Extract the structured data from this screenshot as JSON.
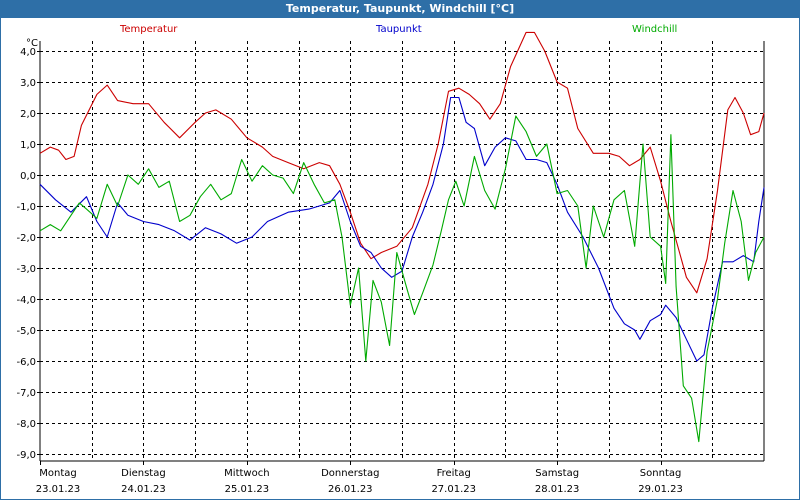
{
  "window": {
    "title": "Temperatur, Taupunkt, Windchill [°C]"
  },
  "unit": "°C",
  "chart_data": {
    "type": "line",
    "title": "Temperatur, Taupunkt, Windchill [°C]",
    "xlabel": "",
    "ylabel": "°C",
    "ylim": [
      -9.0,
      4.0
    ],
    "yticks": [
      "4,0",
      "3,0",
      "2,0",
      "1,0",
      "0,0",
      "-1,0",
      "-2,0",
      "-3,0",
      "-4,0",
      "-5,0",
      "-6,0",
      "-7,0",
      "-8,0",
      "-9,0"
    ],
    "xlim": [
      0,
      7
    ],
    "x_unit": "days from Montag 23.01.23",
    "days": [
      {
        "weekday": "Montag",
        "date": "23.01.23"
      },
      {
        "weekday": "Dienstag",
        "date": "24.01.23"
      },
      {
        "weekday": "Mittwoch",
        "date": "25.01.23"
      },
      {
        "weekday": "Donnerstag",
        "date": "26.01.23"
      },
      {
        "weekday": "Freitag",
        "date": "27.01.23"
      },
      {
        "weekday": "Samstag",
        "date": "28.01.23"
      },
      {
        "weekday": "Sonntag",
        "date": "29.01.23"
      }
    ],
    "grid": true,
    "legend_position": "top",
    "series": [
      {
        "name": "Temperatur",
        "color": "#cc0000",
        "points": [
          [
            0.0,
            0.7
          ],
          [
            0.1,
            0.9
          ],
          [
            0.18,
            0.8
          ],
          [
            0.25,
            0.5
          ],
          [
            0.33,
            0.6
          ],
          [
            0.4,
            1.6
          ],
          [
            0.55,
            2.6
          ],
          [
            0.65,
            2.9
          ],
          [
            0.75,
            2.4
          ],
          [
            0.9,
            2.3
          ],
          [
            1.05,
            2.3
          ],
          [
            1.2,
            1.7
          ],
          [
            1.35,
            1.2
          ],
          [
            1.5,
            1.7
          ],
          [
            1.6,
            2.0
          ],
          [
            1.7,
            2.1
          ],
          [
            1.85,
            1.8
          ],
          [
            2.0,
            1.2
          ],
          [
            2.15,
            0.9
          ],
          [
            2.25,
            0.6
          ],
          [
            2.4,
            0.4
          ],
          [
            2.55,
            0.2
          ],
          [
            2.7,
            0.4
          ],
          [
            2.8,
            0.3
          ],
          [
            2.9,
            -0.3
          ],
          [
            3.0,
            -1.2
          ],
          [
            3.1,
            -2.2
          ],
          [
            3.2,
            -2.7
          ],
          [
            3.3,
            -2.5
          ],
          [
            3.45,
            -2.3
          ],
          [
            3.6,
            -1.7
          ],
          [
            3.75,
            -0.3
          ],
          [
            3.85,
            1.0
          ],
          [
            3.95,
            2.7
          ],
          [
            4.05,
            2.8
          ],
          [
            4.15,
            2.6
          ],
          [
            4.25,
            2.3
          ],
          [
            4.35,
            1.8
          ],
          [
            4.45,
            2.3
          ],
          [
            4.55,
            3.5
          ],
          [
            4.7,
            4.6
          ],
          [
            4.78,
            4.6
          ],
          [
            4.88,
            4.0
          ],
          [
            5.0,
            3.0
          ],
          [
            5.1,
            2.8
          ],
          [
            5.2,
            1.5
          ],
          [
            5.35,
            0.7
          ],
          [
            5.5,
            0.7
          ],
          [
            5.6,
            0.6
          ],
          [
            5.7,
            0.3
          ],
          [
            5.8,
            0.5
          ],
          [
            5.9,
            0.9
          ],
          [
            6.0,
            -0.2
          ],
          [
            6.1,
            -1.5
          ],
          [
            6.25,
            -3.3
          ],
          [
            6.35,
            -3.8
          ],
          [
            6.45,
            -2.7
          ],
          [
            6.55,
            -0.5
          ],
          [
            6.65,
            2.1
          ],
          [
            6.72,
            2.5
          ],
          [
            6.8,
            2.0
          ],
          [
            6.87,
            1.3
          ],
          [
            6.95,
            1.4
          ],
          [
            7.0,
            2.0
          ]
        ]
      },
      {
        "name": "Taupunkt",
        "color": "#0000cc",
        "points": [
          [
            0.0,
            -0.3
          ],
          [
            0.15,
            -0.8
          ],
          [
            0.3,
            -1.2
          ],
          [
            0.45,
            -0.7
          ],
          [
            0.55,
            -1.5
          ],
          [
            0.65,
            -2.0
          ],
          [
            0.75,
            -0.9
          ],
          [
            0.85,
            -1.3
          ],
          [
            1.0,
            -1.5
          ],
          [
            1.15,
            -1.6
          ],
          [
            1.3,
            -1.8
          ],
          [
            1.45,
            -2.1
          ],
          [
            1.6,
            -1.7
          ],
          [
            1.75,
            -1.9
          ],
          [
            1.9,
            -2.2
          ],
          [
            2.05,
            -2.0
          ],
          [
            2.2,
            -1.5
          ],
          [
            2.4,
            -1.2
          ],
          [
            2.6,
            -1.1
          ],
          [
            2.8,
            -0.9
          ],
          [
            2.9,
            -0.5
          ],
          [
            3.0,
            -1.5
          ],
          [
            3.1,
            -2.3
          ],
          [
            3.2,
            -2.5
          ],
          [
            3.3,
            -3.0
          ],
          [
            3.4,
            -3.3
          ],
          [
            3.5,
            -3.1
          ],
          [
            3.6,
            -2.0
          ],
          [
            3.7,
            -1.2
          ],
          [
            3.8,
            -0.3
          ],
          [
            3.9,
            1.0
          ],
          [
            3.97,
            2.5
          ],
          [
            4.05,
            2.5
          ],
          [
            4.12,
            1.7
          ],
          [
            4.2,
            1.5
          ],
          [
            4.3,
            0.3
          ],
          [
            4.4,
            0.9
          ],
          [
            4.5,
            1.2
          ],
          [
            4.6,
            1.1
          ],
          [
            4.7,
            0.5
          ],
          [
            4.8,
            0.5
          ],
          [
            4.9,
            0.4
          ],
          [
            5.0,
            -0.3
          ],
          [
            5.1,
            -1.2
          ],
          [
            5.25,
            -2.0
          ],
          [
            5.4,
            -3.0
          ],
          [
            5.55,
            -4.3
          ],
          [
            5.65,
            -4.8
          ],
          [
            5.75,
            -5.0
          ],
          [
            5.8,
            -5.3
          ],
          [
            5.9,
            -4.7
          ],
          [
            6.0,
            -4.5
          ],
          [
            6.05,
            -4.2
          ],
          [
            6.15,
            -4.6
          ],
          [
            6.25,
            -5.3
          ],
          [
            6.35,
            -6.0
          ],
          [
            6.42,
            -5.8
          ],
          [
            6.5,
            -4.3
          ],
          [
            6.6,
            -2.8
          ],
          [
            6.7,
            -2.8
          ],
          [
            6.8,
            -2.6
          ],
          [
            6.9,
            -2.8
          ],
          [
            6.95,
            -1.5
          ],
          [
            7.0,
            -0.4
          ]
        ]
      },
      {
        "name": "Windchill",
        "color": "#00aa00",
        "points": [
          [
            0.0,
            -1.8
          ],
          [
            0.1,
            -1.6
          ],
          [
            0.2,
            -1.8
          ],
          [
            0.3,
            -1.3
          ],
          [
            0.38,
            -0.9
          ],
          [
            0.45,
            -1.1
          ],
          [
            0.55,
            -1.4
          ],
          [
            0.65,
            -0.3
          ],
          [
            0.75,
            -1.0
          ],
          [
            0.85,
            0.0
          ],
          [
            0.95,
            -0.3
          ],
          [
            1.05,
            0.2
          ],
          [
            1.15,
            -0.4
          ],
          [
            1.25,
            -0.2
          ],
          [
            1.35,
            -1.5
          ],
          [
            1.45,
            -1.3
          ],
          [
            1.55,
            -0.7
          ],
          [
            1.65,
            -0.3
          ],
          [
            1.75,
            -0.8
          ],
          [
            1.85,
            -0.6
          ],
          [
            1.95,
            0.5
          ],
          [
            2.05,
            -0.2
          ],
          [
            2.15,
            0.3
          ],
          [
            2.25,
            0.0
          ],
          [
            2.35,
            -0.1
          ],
          [
            2.45,
            -0.6
          ],
          [
            2.55,
            0.4
          ],
          [
            2.65,
            -0.3
          ],
          [
            2.75,
            -0.9
          ],
          [
            2.85,
            -0.8
          ],
          [
            2.92,
            -2.0
          ],
          [
            3.0,
            -4.2
          ],
          [
            3.08,
            -3.0
          ],
          [
            3.15,
            -6.0
          ],
          [
            3.22,
            -3.4
          ],
          [
            3.3,
            -4.1
          ],
          [
            3.38,
            -5.5
          ],
          [
            3.45,
            -2.5
          ],
          [
            3.55,
            -3.7
          ],
          [
            3.62,
            -4.5
          ],
          [
            3.7,
            -3.8
          ],
          [
            3.8,
            -2.9
          ],
          [
            3.88,
            -1.8
          ],
          [
            3.95,
            -0.8
          ],
          [
            4.02,
            -0.2
          ],
          [
            4.1,
            -1.0
          ],
          [
            4.2,
            0.6
          ],
          [
            4.3,
            -0.5
          ],
          [
            4.4,
            -1.1
          ],
          [
            4.5,
            0.2
          ],
          [
            4.6,
            1.9
          ],
          [
            4.7,
            1.4
          ],
          [
            4.8,
            0.6
          ],
          [
            4.9,
            1.0
          ],
          [
            5.0,
            -0.6
          ],
          [
            5.1,
            -0.5
          ],
          [
            5.2,
            -1.0
          ],
          [
            5.28,
            -3.0
          ],
          [
            5.35,
            -1.0
          ],
          [
            5.45,
            -2.0
          ],
          [
            5.55,
            -0.8
          ],
          [
            5.65,
            -0.5
          ],
          [
            5.75,
            -2.3
          ],
          [
            5.83,
            1.0
          ],
          [
            5.9,
            -2.0
          ],
          [
            6.0,
            -2.3
          ],
          [
            6.05,
            -3.5
          ],
          [
            6.1,
            1.3
          ],
          [
            6.15,
            -3.6
          ],
          [
            6.22,
            -6.8
          ],
          [
            6.3,
            -7.2
          ],
          [
            6.37,
            -8.6
          ],
          [
            6.45,
            -5.7
          ],
          [
            6.55,
            -4.0
          ],
          [
            6.62,
            -2.2
          ],
          [
            6.7,
            -0.5
          ],
          [
            6.78,
            -1.5
          ],
          [
            6.85,
            -3.4
          ],
          [
            6.92,
            -2.5
          ],
          [
            7.0,
            -2.0
          ]
        ]
      }
    ]
  }
}
